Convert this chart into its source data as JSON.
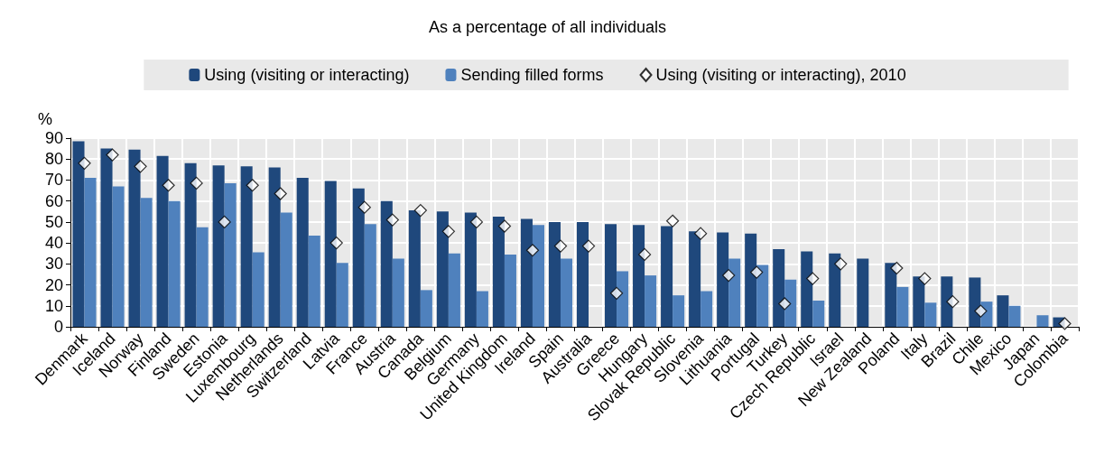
{
  "chart_data": {
    "type": "bar",
    "title": "As a percentage of all individuals",
    "ylabel": "%",
    "categories": [
      "Denmark",
      "Iceland",
      "Norway",
      "Finland",
      "Sweden",
      "Estonia",
      "Luxembourg",
      "Netherlands",
      "Switzerland",
      "Latvia",
      "France",
      "Austria",
      "Canada",
      "Belgium",
      "Germany",
      "United Kingdom",
      "Ireland",
      "Spain",
      "Australia",
      "Greece",
      "Hungary",
      "Slovak Republic",
      "Slovenia",
      "Lithuania",
      "Portugal",
      "Turkey",
      "Czech Republic",
      "Israel",
      "New Zealand",
      "Poland",
      "Italy",
      "Brazil",
      "Chile",
      "Mexico",
      "Japan",
      "Colombia"
    ],
    "series": [
      {
        "name": "Using (visiting or interacting)",
        "color": "#1f487c",
        "values": [
          88.5,
          85,
          84.5,
          81.5,
          78,
          77,
          76.5,
          76,
          71,
          69.5,
          66,
          60,
          55.5,
          55,
          54.5,
          52.5,
          51.5,
          50,
          50,
          49,
          48.5,
          48,
          45.5,
          45,
          44.5,
          37,
          36,
          35,
          32.5,
          30.5,
          24,
          24,
          23.5,
          15,
          null,
          4.5
        ]
      },
      {
        "name": "Sending filled forms",
        "color": "#4f81bd",
        "values": [
          71,
          67,
          61.5,
          60,
          47.5,
          68.5,
          35.5,
          54.5,
          43.5,
          30.5,
          49,
          32.5,
          17.5,
          35,
          17,
          34.5,
          48.5,
          32.5,
          null,
          26.5,
          24.5,
          15,
          17,
          32.5,
          29.5,
          22.5,
          12.5,
          null,
          null,
          19,
          11.5,
          null,
          12,
          10,
          5.5,
          null
        ]
      },
      {
        "name": "Using (visiting or interacting), 2010",
        "type": "scatter",
        "marker": "diamond",
        "color": "#ffffff",
        "values": [
          78,
          82,
          76.5,
          67.5,
          68.5,
          50,
          67.5,
          63.5,
          null,
          40,
          57,
          51,
          55.5,
          45.5,
          50,
          48,
          36.5,
          38.5,
          38.5,
          16,
          34.5,
          50.5,
          44.5,
          24.5,
          26,
          11,
          23,
          30,
          null,
          28,
          23,
          12,
          7.5,
          null,
          null,
          1.5
        ]
      }
    ],
    "ylim": [
      0,
      90
    ],
    "yticks": [
      0,
      10,
      20,
      30,
      40,
      50,
      60,
      70,
      80,
      90
    ],
    "grid": true,
    "legend": "top"
  }
}
